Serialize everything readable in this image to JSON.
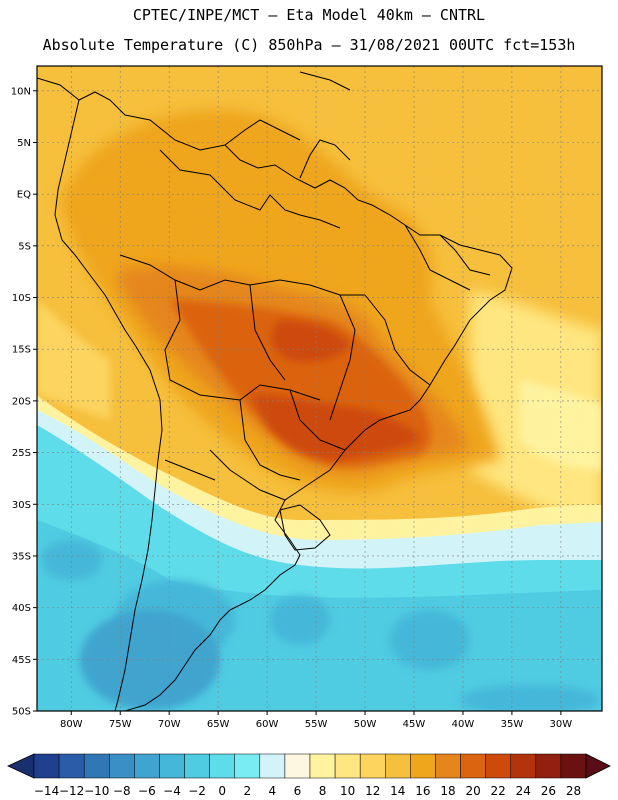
{
  "header": {
    "line1": "CPTEC/INPE/MCT –  Eta Model 40km – CNTRL",
    "line2": "Absolute Temperature (C) 850hPa – 31/08/2021 00UTC fct=153h"
  },
  "map": {
    "lat_labels": [
      {
        "lat": 10,
        "text": "10N"
      },
      {
        "lat": 5,
        "text": "5N"
      },
      {
        "lat": 0,
        "text": "EQ"
      },
      {
        "lat": -5,
        "text": "5S"
      },
      {
        "lat": -10,
        "text": "10S"
      },
      {
        "lat": -15,
        "text": "15S"
      },
      {
        "lat": -20,
        "text": "20S"
      },
      {
        "lat": -25,
        "text": "25S"
      },
      {
        "lat": -30,
        "text": "30S"
      },
      {
        "lat": -35,
        "text": "35S"
      },
      {
        "lat": -40,
        "text": "40S"
      },
      {
        "lat": -45,
        "text": "45S"
      },
      {
        "lat": -50,
        "text": "50S"
      }
    ],
    "lon_labels": [
      {
        "lon": -80,
        "text": "80W"
      },
      {
        "lon": -75,
        "text": "75W"
      },
      {
        "lon": -70,
        "text": "70W"
      },
      {
        "lon": -65,
        "text": "65W"
      },
      {
        "lon": -60,
        "text": "60W"
      },
      {
        "lon": -55,
        "text": "55W"
      },
      {
        "lon": -50,
        "text": "50W"
      },
      {
        "lon": -45,
        "text": "45W"
      },
      {
        "lon": -40,
        "text": "40W"
      },
      {
        "lon": -35,
        "text": "35W"
      },
      {
        "lon": -30,
        "text": "30W"
      }
    ],
    "colorbar": {
      "labels": [
        "-14",
        "-12",
        "-10",
        "-8",
        "-6",
        "-4",
        "-2",
        "0",
        "2",
        "4",
        "6",
        "8",
        "10",
        "12",
        "14",
        "16",
        "18",
        "20",
        "22",
        "24",
        "26",
        "28"
      ],
      "colors": [
        "#1f3f8f",
        "#2a5da8",
        "#2f78b5",
        "#3a8fc4",
        "#3fa4cf",
        "#45b8d9",
        "#4fcbe2",
        "#5fdcea",
        "#79ecf2",
        "#d2f4f8",
        "#fdf7df",
        "#fff3a0",
        "#ffe680",
        "#fcd45e",
        "#f6bf3c",
        "#efa51c",
        "#e5861c",
        "#dc6410",
        "#cd4a0c",
        "#b3330d",
        "#922011",
        "#6a1212"
      ]
    }
  }
}
